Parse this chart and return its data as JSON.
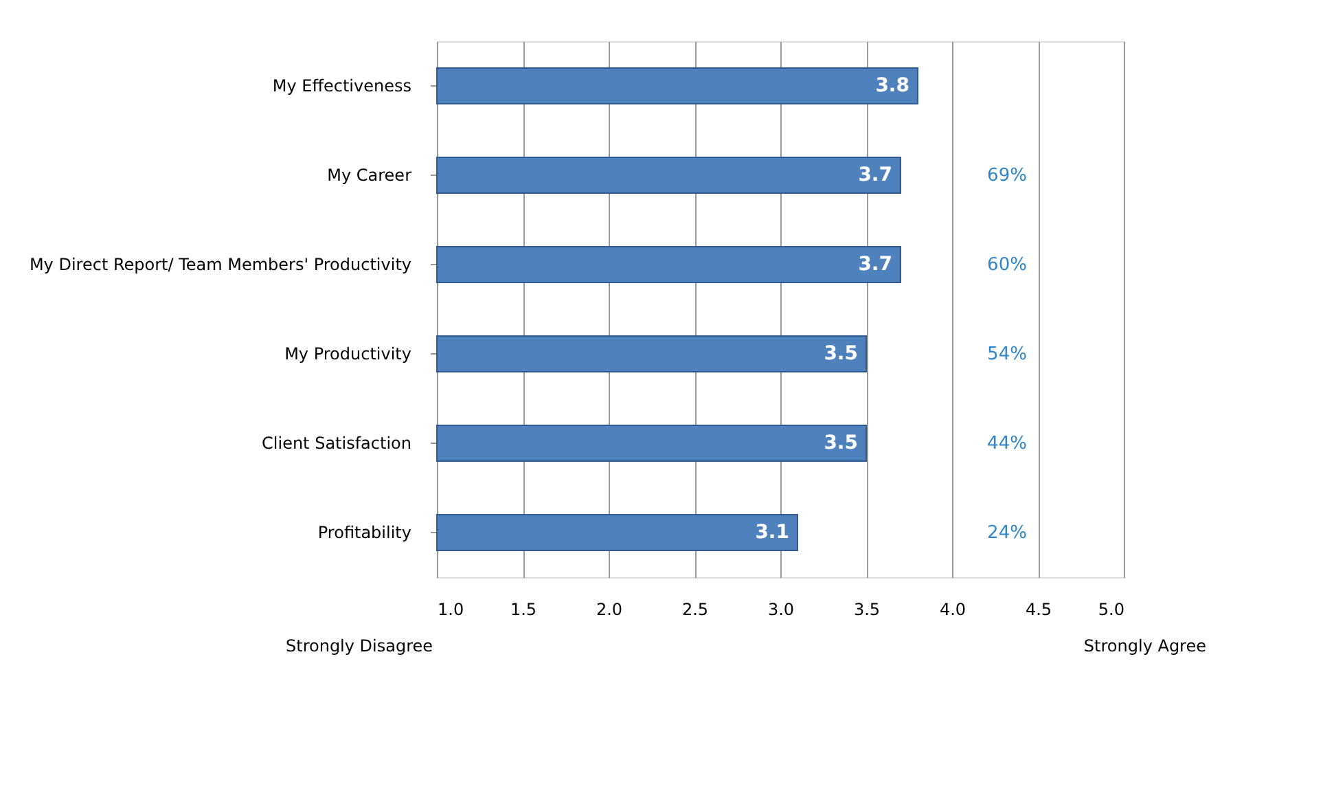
{
  "chart_data": {
    "type": "bar",
    "orientation": "horizontal",
    "categories": [
      "My Effectiveness",
      "My Career",
      "My Direct Report/ Team Members' Productivity",
      "My Productivity",
      "Client Satisfaction",
      "Profitability"
    ],
    "values": [
      3.8,
      3.7,
      3.7,
      3.5,
      3.5,
      3.1
    ],
    "color": "#4f81bd",
    "data_labels": true,
    "xlim": [
      1,
      5
    ],
    "xticks": [
      {
        "value": 1,
        "label": "1.0"
      },
      {
        "value": 1.5,
        "label": "1.5"
      },
      {
        "value": 2,
        "label": "2.0"
      },
      {
        "value": 2.5,
        "label": "2.5"
      },
      {
        "value": 3,
        "label": "3.0"
      },
      {
        "value": 3.5,
        "label": "3.5"
      },
      {
        "value": 4,
        "label": "4.0"
      },
      {
        "value": 4.5,
        "label": "4.5"
      },
      {
        "value": 5,
        "label": "5.0"
      }
    ],
    "grid": "x",
    "annotations": [
      "69%",
      "60%",
      "54%",
      "44%",
      "24%",
      "Strongly Disagree",
      "Strongly Agree"
    ]
  }
}
